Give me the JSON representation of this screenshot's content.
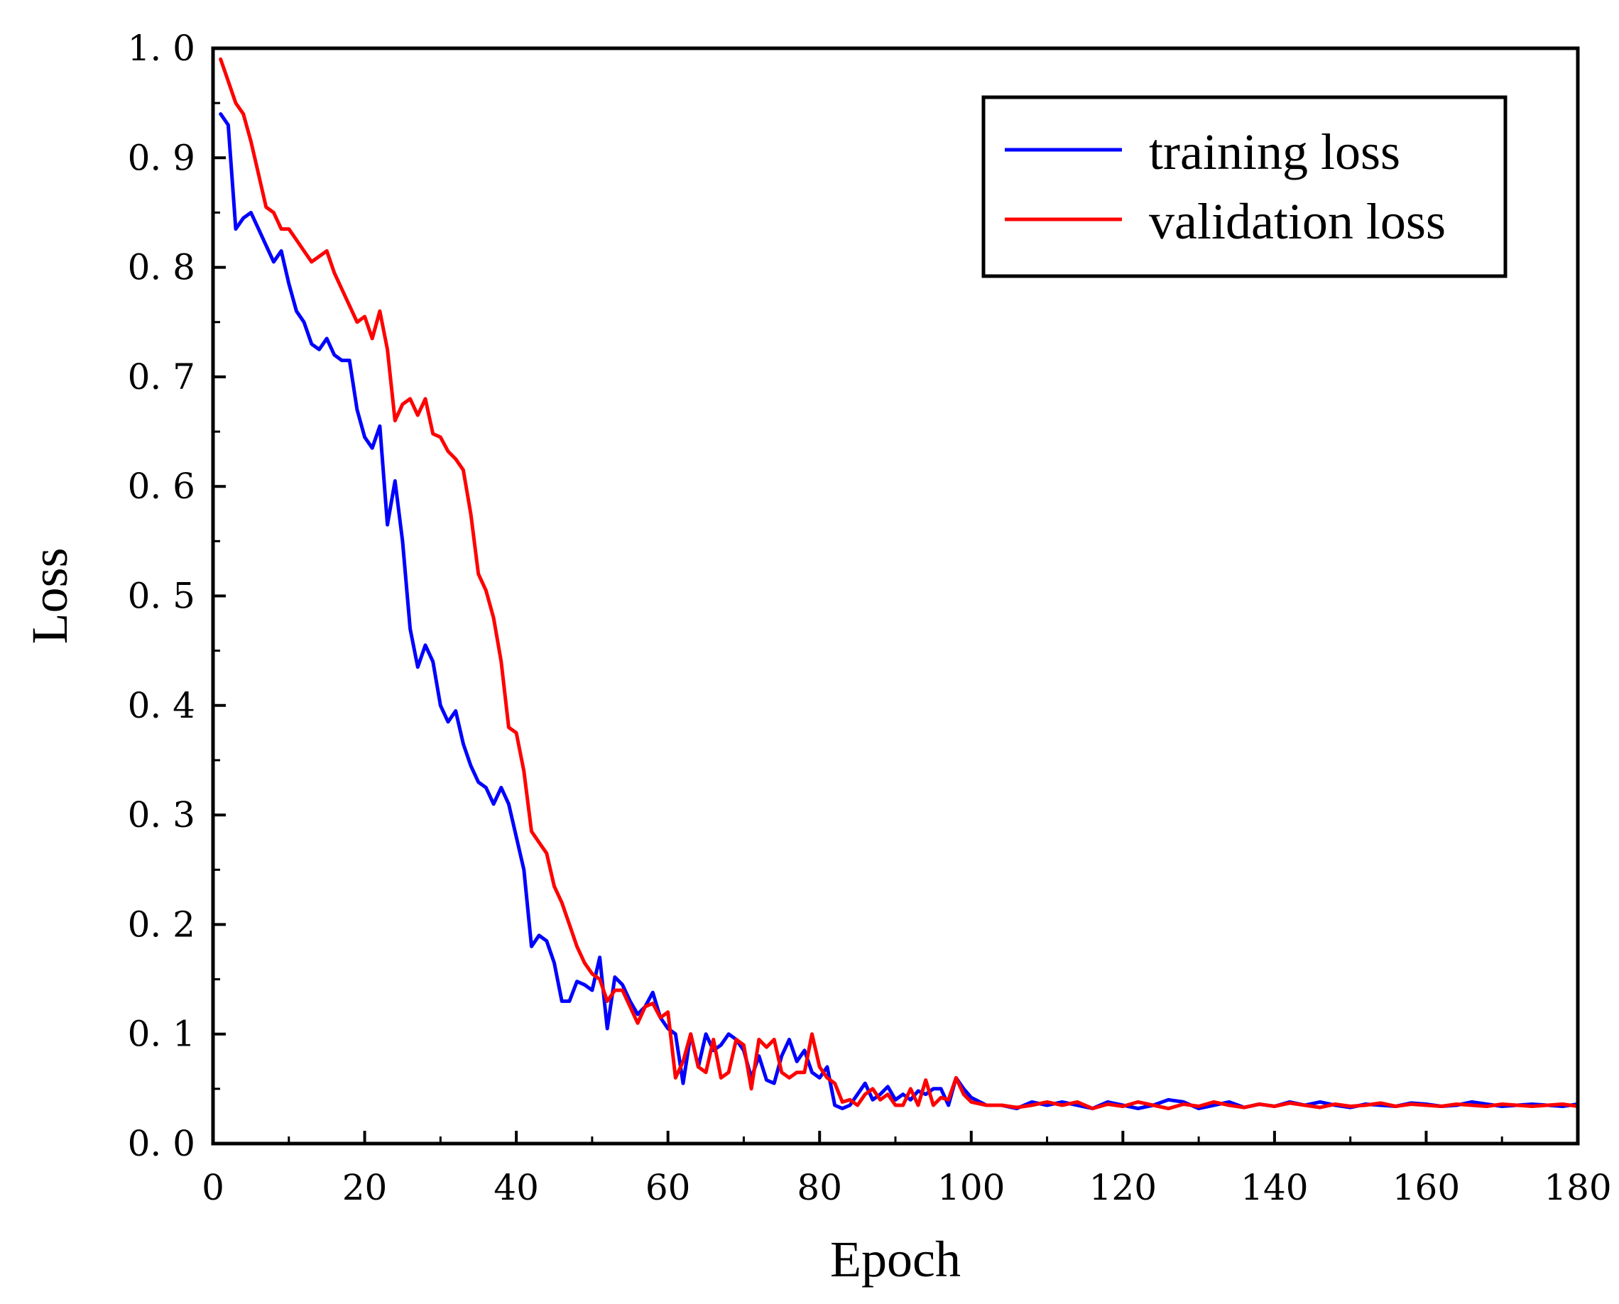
{
  "chart_data": {
    "type": "line",
    "title": "",
    "xlabel": "Epoch",
    "ylabel": "Loss",
    "xlim": [
      0,
      180
    ],
    "ylim": [
      0.0,
      1.0
    ],
    "xticks": [
      0,
      20,
      40,
      60,
      80,
      100,
      120,
      140,
      160,
      180
    ],
    "xtick_labels": [
      "0",
      "20",
      "40",
      "60",
      "80",
      "100",
      "120",
      "140",
      "160",
      "180"
    ],
    "yticks": [
      0.0,
      0.1,
      0.2,
      0.3,
      0.4,
      0.5,
      0.6,
      0.7,
      0.8,
      0.9,
      1.0
    ],
    "ytick_labels": [
      "0. 0",
      "0. 1",
      "0. 2",
      "0. 3",
      "0. 4",
      "0. 5",
      "0. 6",
      "0. 7",
      "0. 8",
      "0. 9",
      "1. 0"
    ],
    "grid": false,
    "legend_position": "top-right",
    "colors": {
      "axes": "#000000",
      "training": "#0000ff",
      "validation": "#ff0000"
    },
    "series": [
      {
        "name": "training loss",
        "color": "#0000ff",
        "x": [
          1,
          2,
          3,
          4,
          5,
          6,
          7,
          8,
          9,
          10,
          11,
          12,
          13,
          14,
          15,
          16,
          17,
          18,
          19,
          20,
          21,
          22,
          23,
          24,
          25,
          26,
          27,
          28,
          29,
          30,
          31,
          32,
          33,
          34,
          35,
          36,
          37,
          38,
          39,
          40,
          41,
          42,
          43,
          44,
          45,
          46,
          47,
          48,
          49,
          50,
          51,
          52,
          53,
          54,
          55,
          56,
          57,
          58,
          59,
          60,
          61,
          62,
          63,
          64,
          65,
          66,
          67,
          68,
          69,
          70,
          71,
          72,
          73,
          74,
          75,
          76,
          77,
          78,
          79,
          80,
          81,
          82,
          83,
          84,
          85,
          86,
          87,
          88,
          89,
          90,
          91,
          92,
          93,
          94,
          95,
          96,
          97,
          98,
          99,
          100,
          102,
          104,
          106,
          108,
          110,
          112,
          114,
          116,
          118,
          120,
          122,
          124,
          126,
          128,
          130,
          132,
          134,
          136,
          138,
          140,
          142,
          144,
          146,
          148,
          150,
          152,
          154,
          156,
          158,
          160,
          162,
          164,
          166,
          168,
          170,
          172,
          174,
          176,
          178,
          180
        ],
        "y": [
          0.94,
          0.93,
          0.835,
          0.845,
          0.85,
          0.835,
          0.82,
          0.805,
          0.815,
          0.785,
          0.76,
          0.75,
          0.73,
          0.725,
          0.735,
          0.72,
          0.715,
          0.715,
          0.67,
          0.645,
          0.635,
          0.655,
          0.565,
          0.605,
          0.55,
          0.47,
          0.435,
          0.455,
          0.44,
          0.4,
          0.385,
          0.395,
          0.365,
          0.345,
          0.33,
          0.325,
          0.31,
          0.325,
          0.31,
          0.28,
          0.25,
          0.18,
          0.19,
          0.185,
          0.165,
          0.13,
          0.13,
          0.148,
          0.145,
          0.14,
          0.17,
          0.105,
          0.152,
          0.145,
          0.13,
          0.118,
          0.125,
          0.138,
          0.115,
          0.105,
          0.1,
          0.055,
          0.1,
          0.07,
          0.1,
          0.085,
          0.09,
          0.1,
          0.095,
          0.085,
          0.06,
          0.08,
          0.058,
          0.055,
          0.08,
          0.095,
          0.075,
          0.085,
          0.065,
          0.06,
          0.07,
          0.035,
          0.032,
          0.035,
          0.045,
          0.055,
          0.04,
          0.045,
          0.052,
          0.04,
          0.045,
          0.04,
          0.048,
          0.045,
          0.05,
          0.05,
          0.035,
          0.06,
          0.05,
          0.042,
          0.035,
          0.035,
          0.032,
          0.038,
          0.035,
          0.038,
          0.035,
          0.032,
          0.038,
          0.035,
          0.032,
          0.035,
          0.04,
          0.038,
          0.032,
          0.035,
          0.038,
          0.033,
          0.036,
          0.034,
          0.038,
          0.035,
          0.038,
          0.035,
          0.033,
          0.036,
          0.035,
          0.034,
          0.037,
          0.036,
          0.034,
          0.035,
          0.038,
          0.036,
          0.034,
          0.035,
          0.036,
          0.035,
          0.034,
          0.036
        ]
      },
      {
        "name": "validation loss",
        "color": "#ff0000",
        "x": [
          1,
          2,
          3,
          4,
          5,
          6,
          7,
          8,
          9,
          10,
          11,
          12,
          13,
          14,
          15,
          16,
          17,
          18,
          19,
          20,
          21,
          22,
          23,
          24,
          25,
          26,
          27,
          28,
          29,
          30,
          31,
          32,
          33,
          34,
          35,
          36,
          37,
          38,
          39,
          40,
          41,
          42,
          43,
          44,
          45,
          46,
          47,
          48,
          49,
          50,
          51,
          52,
          53,
          54,
          55,
          56,
          57,
          58,
          59,
          60,
          61,
          62,
          63,
          64,
          65,
          66,
          67,
          68,
          69,
          70,
          71,
          72,
          73,
          74,
          75,
          76,
          77,
          78,
          79,
          80,
          81,
          82,
          83,
          84,
          85,
          86,
          87,
          88,
          89,
          90,
          91,
          92,
          93,
          94,
          95,
          96,
          97,
          98,
          99,
          100,
          102,
          104,
          106,
          108,
          110,
          112,
          114,
          116,
          118,
          120,
          122,
          124,
          126,
          128,
          130,
          132,
          134,
          136,
          138,
          140,
          142,
          144,
          146,
          148,
          150,
          152,
          154,
          156,
          158,
          160,
          162,
          164,
          166,
          168,
          170,
          172,
          174,
          176,
          178,
          180
        ],
        "y": [
          0.99,
          0.97,
          0.95,
          0.94,
          0.915,
          0.885,
          0.855,
          0.85,
          0.835,
          0.835,
          0.825,
          0.815,
          0.805,
          0.81,
          0.815,
          0.795,
          0.78,
          0.765,
          0.75,
          0.755,
          0.735,
          0.76,
          0.725,
          0.66,
          0.675,
          0.68,
          0.665,
          0.68,
          0.648,
          0.645,
          0.632,
          0.625,
          0.615,
          0.575,
          0.52,
          0.505,
          0.48,
          0.44,
          0.38,
          0.375,
          0.34,
          0.285,
          0.275,
          0.265,
          0.235,
          0.22,
          0.2,
          0.18,
          0.165,
          0.155,
          0.15,
          0.13,
          0.14,
          0.14,
          0.125,
          0.11,
          0.125,
          0.128,
          0.115,
          0.12,
          0.06,
          0.075,
          0.1,
          0.07,
          0.065,
          0.095,
          0.06,
          0.065,
          0.095,
          0.09,
          0.05,
          0.095,
          0.088,
          0.095,
          0.065,
          0.06,
          0.065,
          0.065,
          0.1,
          0.07,
          0.06,
          0.055,
          0.038,
          0.04,
          0.035,
          0.045,
          0.05,
          0.04,
          0.045,
          0.035,
          0.035,
          0.05,
          0.035,
          0.058,
          0.035,
          0.042,
          0.04,
          0.06,
          0.045,
          0.038,
          0.035,
          0.035,
          0.033,
          0.035,
          0.038,
          0.035,
          0.038,
          0.032,
          0.036,
          0.034,
          0.038,
          0.035,
          0.032,
          0.036,
          0.034,
          0.038,
          0.035,
          0.033,
          0.036,
          0.034,
          0.037,
          0.035,
          0.033,
          0.036,
          0.034,
          0.035,
          0.037,
          0.034,
          0.036,
          0.035,
          0.034,
          0.036,
          0.035,
          0.034,
          0.036,
          0.035,
          0.034,
          0.035,
          0.036,
          0.034
        ]
      }
    ]
  }
}
